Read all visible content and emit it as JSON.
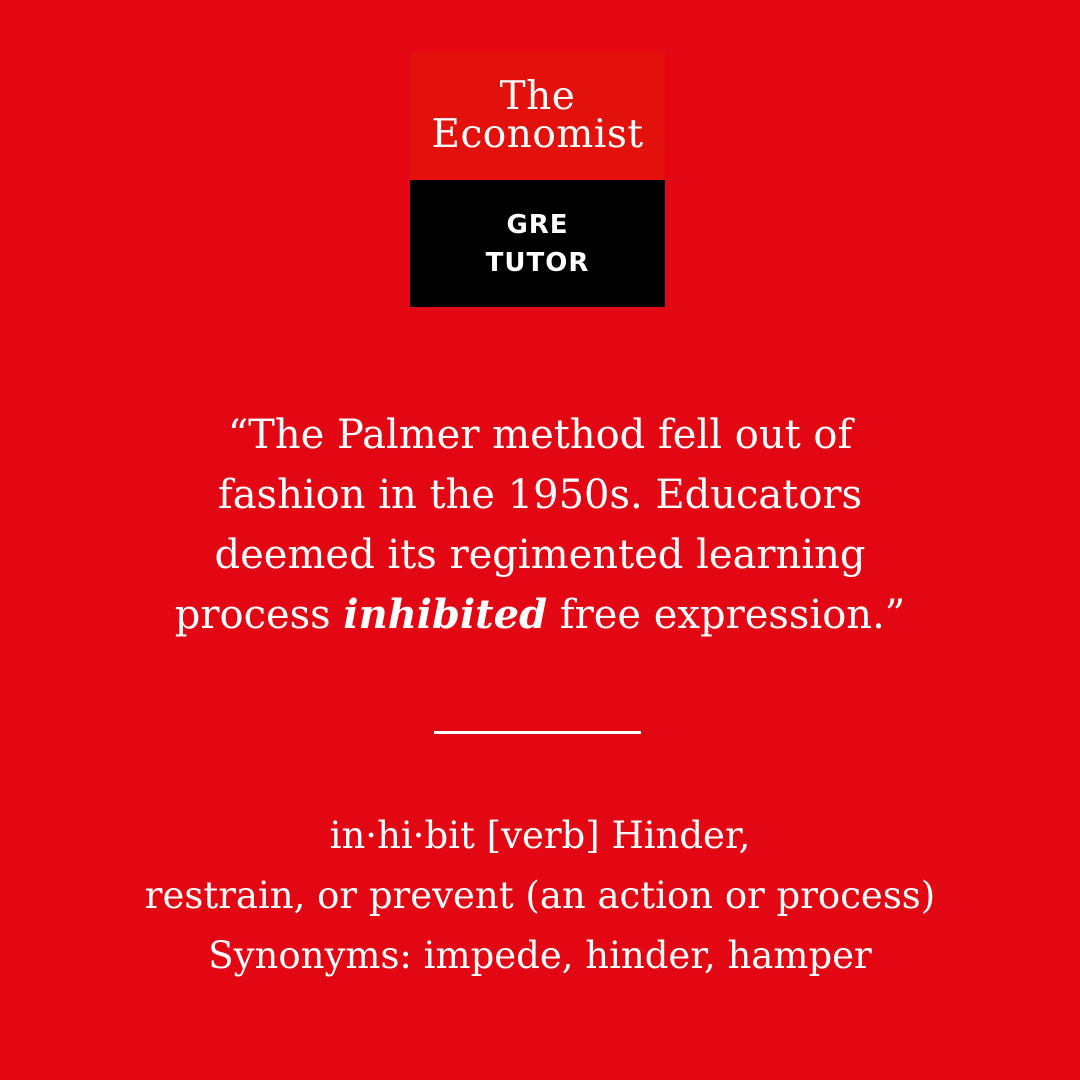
{
  "logo": {
    "line1": "The",
    "line2": "Economist",
    "sub1": "GRE",
    "sub2": "TUTOR"
  },
  "quote": {
    "line1": "“The Palmer method fell out of",
    "line2": "fashion in the 1950s. Educators",
    "line3": "deemed its regimented learning",
    "line4_pre": "process ",
    "line4_word": "inhibited",
    "line4_post": " free expression.”"
  },
  "definition": {
    "line1": "in·hi·bit [verb] Hinder,",
    "line2": "restrain, or prevent (an action or process)",
    "line3": "Synonyms: impede, hinder, hamper"
  },
  "colors": {
    "background": "#e30613",
    "logo_red": "#e2110c",
    "logo_black": "#000000",
    "text": "#ffffff"
  }
}
